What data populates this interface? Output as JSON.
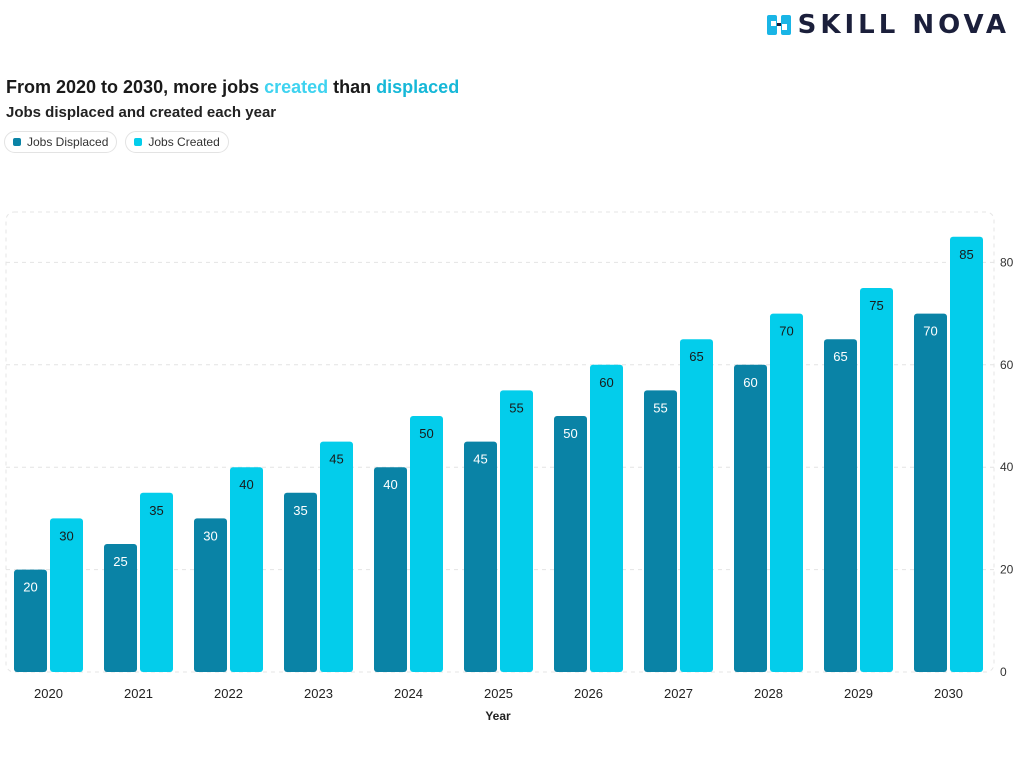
{
  "brand": {
    "name": "SKILL NOVA",
    "colors": {
      "dark": "#1b1f3b",
      "accent": "#19b5e6"
    }
  },
  "headline": {
    "part1": "From 2020 to 2030, more jobs ",
    "created": "created",
    "part2": " than ",
    "displaced": "displaced"
  },
  "chart_data": {
    "type": "bar",
    "title": "From 2020 to 2030, more jobs created than displaced",
    "subtitle": "Jobs displaced and created each year",
    "xlabel": "Year",
    "ylabel": "",
    "categories": [
      "2020",
      "2021",
      "2022",
      "2023",
      "2024",
      "2025",
      "2026",
      "2027",
      "2028",
      "2029",
      "2030"
    ],
    "series": [
      {
        "name": "Jobs Displaced",
        "color": "#0a83a6",
        "label_color": "#ffffff",
        "values": [
          20,
          25,
          30,
          35,
          40,
          45,
          50,
          55,
          60,
          65,
          70
        ]
      },
      {
        "name": "Jobs Created",
        "color": "#03cdeb",
        "label_color": "#1a1a1a",
        "values": [
          30,
          35,
          40,
          45,
          50,
          55,
          60,
          65,
          70,
          75,
          85
        ]
      }
    ],
    "ylim": [
      0,
      90
    ],
    "yticks": [
      0,
      20,
      40,
      60,
      80
    ],
    "y_axis_side": "right",
    "grid": true,
    "legend": "top-left",
    "data_labels": true
  }
}
